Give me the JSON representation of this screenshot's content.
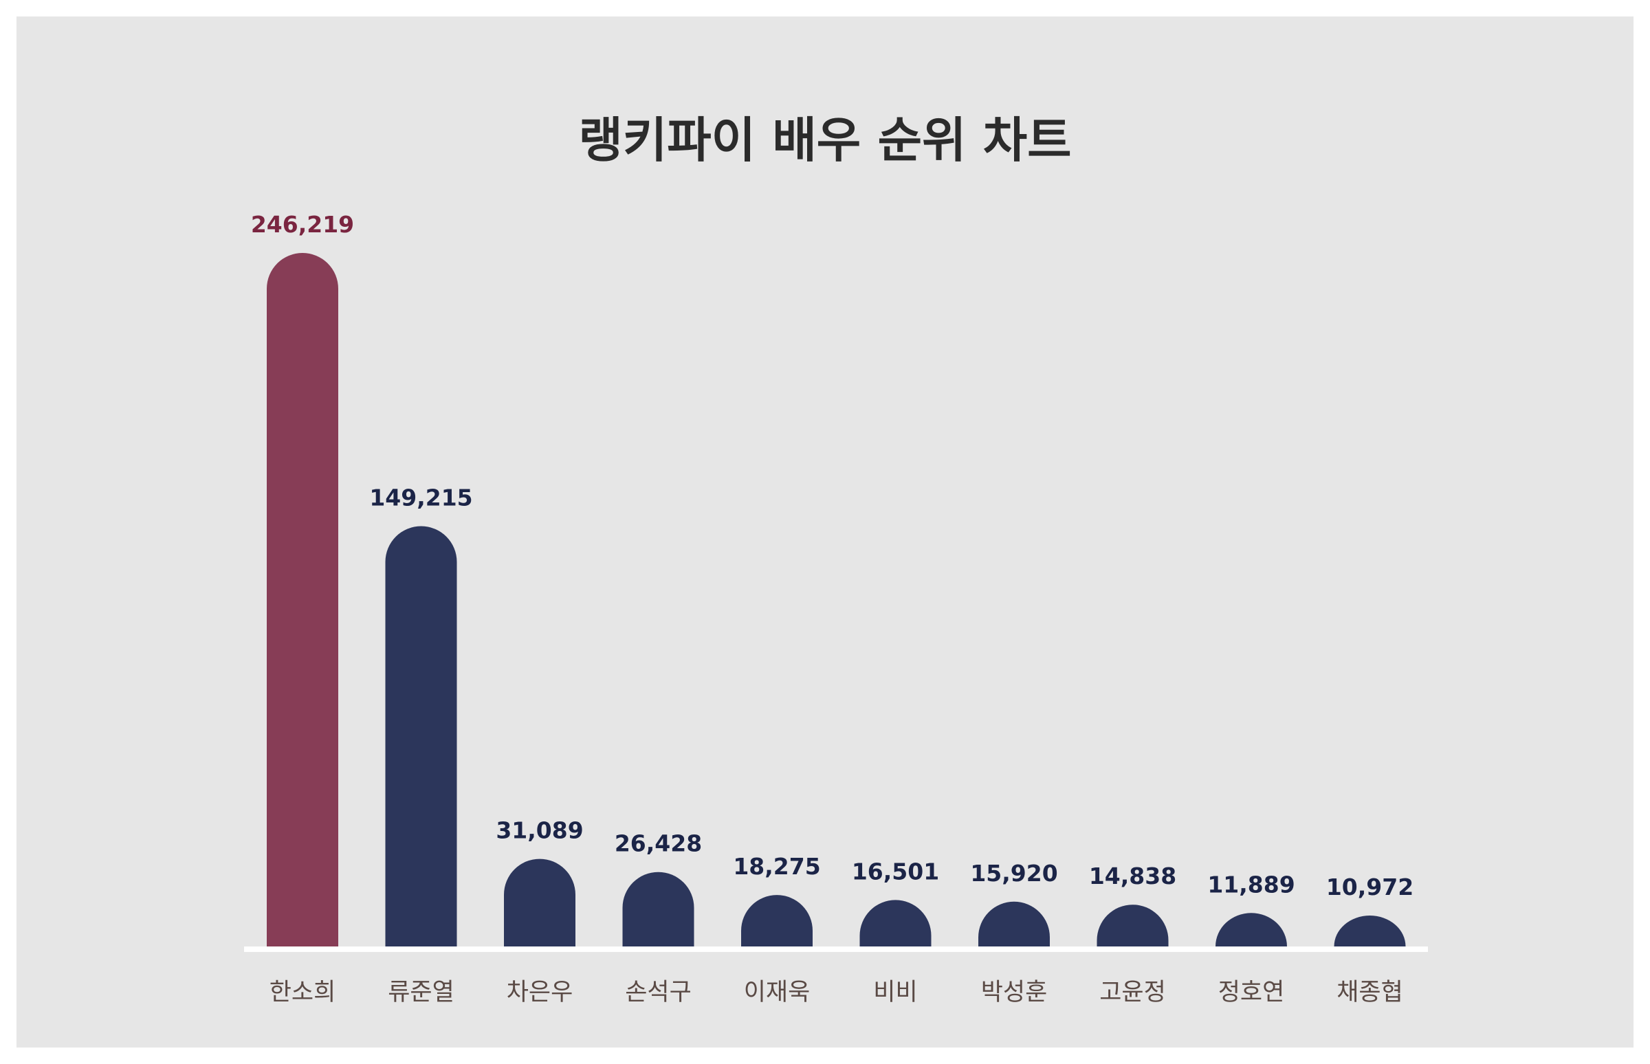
{
  "chart_data": {
    "type": "bar",
    "title": "랭키파이 배우 순위 차트",
    "categories": [
      "한소희",
      "류준열",
      "차은우",
      "손석구",
      "이재욱",
      "비비",
      "박성훈",
      "고윤정",
      "정호연",
      "채종협"
    ],
    "values": [
      246219,
      149215,
      31089,
      26428,
      18275,
      16501,
      15920,
      14838,
      11889,
      10972
    ],
    "value_labels": [
      "246,219",
      "149,215",
      "31,089",
      "26,428",
      "18,275",
      "16,501",
      "15,920",
      "14,838",
      "11,889",
      "10,972"
    ],
    "xlabel": "",
    "ylabel": "",
    "ylim": [
      0,
      246219
    ],
    "grid": false,
    "legend": "none"
  },
  "colors": {
    "highlight_bar": "#873d56",
    "bar": "#2c365b",
    "highlight_label": "#7a2540",
    "label": "#1b2447",
    "category_label": "#5a4a45",
    "baseline": "#ffffff",
    "background": "#e6e6e6"
  }
}
